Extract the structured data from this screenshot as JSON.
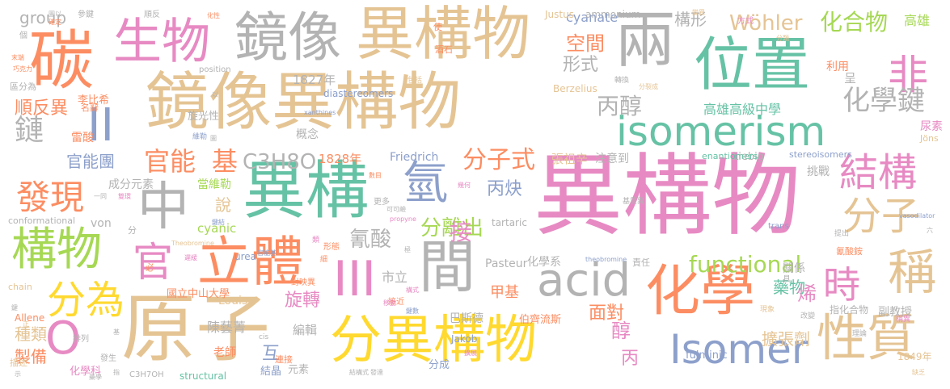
{
  "colors": {
    "pink": "#e78ac3",
    "green": "#66c2a5",
    "tan": "#e5c494",
    "orange": "#fc8d62",
    "blue": "#8da0cb",
    "lime": "#a6d854",
    "yellow": "#ffd92f",
    "gray": "#b3b3b3"
  },
  "words": [
    "異構物",
    "鏡像異構物",
    "異構",
    "原子",
    "分異構物",
    "isomerism",
    "位置",
    "化學",
    "中",
    "碳",
    "生物",
    "鏡像",
    "異構物",
    "兩",
    "立體",
    "間",
    "性質",
    "稱",
    "構物",
    "發現",
    "氫",
    "Isomer",
    "acid",
    "分為",
    "結構",
    "分子",
    "時",
    "非",
    "官",
    "O",
    "II",
    "III",
    "化學鍵",
    "鏈",
    "丙醇",
    "functional",
    "分子式",
    "官能",
    "基",
    "Wöhler",
    "化合物",
    "C3H8O",
    "分離出",
    "接",
    "氰酸",
    "空間",
    "形式",
    "構形",
    "高雄高級中學",
    "旋轉",
    "丙炔",
    "官能團",
    "順反異",
    "1828年",
    "1827年",
    "Friedrich",
    "張祖辛",
    "面對",
    "藥物",
    "擴張劑",
    "醇",
    "烯",
    "甲基",
    "cyanate",
    "Justus",
    "ammonium",
    "國立中山大學",
    "市立",
    "丙",
    "種類",
    "製備",
    "化學科",
    "老師",
    "結晶",
    "分成",
    "互",
    "說",
    "von",
    "當維勒",
    "stereoisomers",
    "Liebig",
    "挑戰",
    "enantiomers",
    "fulminic",
    "Jakob",
    "巴斯德",
    "伯齊流斯",
    "指化合物",
    "副教授",
    "Pasteur",
    "tartaric",
    "diastereomers",
    "概念",
    "Berzelius",
    "化學系",
    "cyanic",
    "urea",
    "Louis",
    "陳藝菁",
    "編輯",
    "元素",
    "成分元素",
    "C3H7OH",
    "structural",
    "group",
    "李比希",
    "旋光性",
    "雷酸",
    "注意到",
    "利用",
    "呈",
    "高雄",
    "尿素",
    "Jöns",
    "trans",
    "cis",
    "chain",
    "conformational",
    "position",
    "1849年",
    "數目",
    "幾何",
    "propyne",
    "xanthines",
    "theobromine",
    "vasodilator",
    "Allene",
    "描述",
    "排列",
    "發生",
    "更多",
    "極",
    "細",
    "接近",
    "必",
    "提出",
    "改變",
    "具",
    "關係",
    "現象",
    "稱異",
    "使",
    "酒石",
    "包括",
    "轉換",
    "分裂成",
    "基質異",
    "連接",
    "責任",
    "氰酸銨",
    "官能基",
    "Theobromine",
    "可可鹼",
    "對映異",
    "形態",
    "類",
    "分",
    "維勒",
    "理論",
    "遲緩",
    "移動",
    "方式",
    "名辭",
    "區分為",
    "末端",
    "巧克力",
    "確定",
    "化性",
    "參鍵",
    "順反",
    "圖以",
    "個",
    "以",
    "六",
    "一同",
    "鍵",
    "正",
    "雙環",
    "鍵結",
    "鍵數",
    "構式",
    "結構式",
    "圖",
    "基",
    "示",
    "擴展",
    "指",
    "藥學",
    "發達",
    "缺乏",
    "變異",
    "分類",
    "擁有"
  ]
}
